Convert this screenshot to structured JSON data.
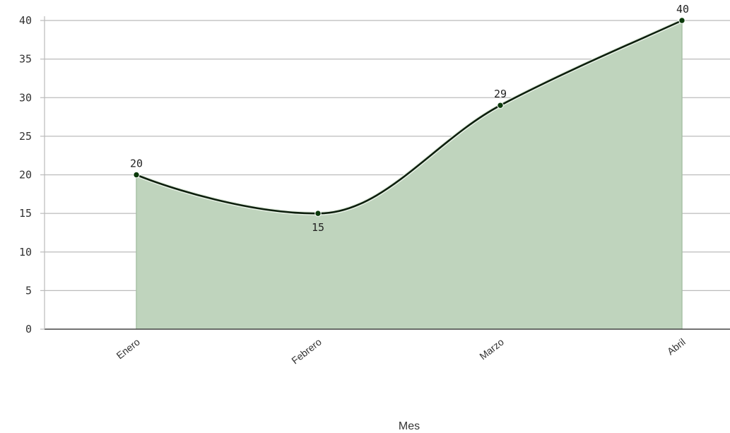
{
  "chart_data": {
    "type": "area",
    "categories": [
      "Enero",
      "Febrero",
      "Marzo",
      "Abril"
    ],
    "values": [
      20,
      15,
      29,
      40
    ],
    "data_labels": [
      "20",
      "15",
      "29",
      "40"
    ],
    "title": "",
    "xlabel": "Mes",
    "ylabel": "",
    "ylim": [
      0,
      40
    ],
    "yticks": [
      0,
      5,
      10,
      15,
      20,
      25,
      30,
      35,
      40
    ],
    "grid": true,
    "colors": {
      "fill": "#bfd4bd",
      "line": "#0d1f0d",
      "point": "#0b3a0b",
      "grid": "#bbbbbb",
      "axis": "#444444"
    }
  }
}
